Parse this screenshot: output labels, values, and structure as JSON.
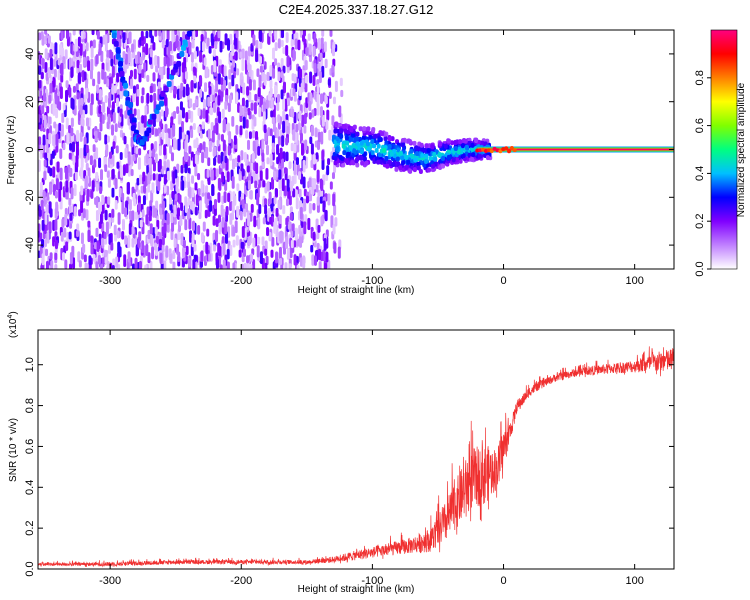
{
  "title": "C2E4.2025.337.18.27.G12",
  "chart_data": [
    {
      "type": "heatmap",
      "xlabel": "Height of straight line (km)",
      "ylabel": "Frequency (Hz)",
      "xlim": [
        -355,
        130
      ],
      "ylim": [
        -50,
        50
      ],
      "xticks": [
        -300,
        -200,
        -100,
        0,
        100
      ],
      "yticks": [
        -40,
        -20,
        0,
        20,
        40
      ],
      "xtick_labels": [
        "-300",
        "-200",
        "-100",
        "0",
        "100"
      ],
      "ytick_labels": [
        "-40",
        "-20",
        "0",
        "20",
        "40"
      ],
      "colorbar": {
        "label": "Normalized spectral amplitude",
        "range": [
          0,
          1
        ],
        "ticks": [
          0.0,
          0.2,
          0.4,
          0.6,
          0.8
        ],
        "tick_labels": [
          "0.0",
          "0.2",
          "0.4",
          "0.6",
          "0.8"
        ],
        "colors": [
          "#ffffff",
          "#c080ff",
          "#8000ff",
          "#0000ff",
          "#00c0ff",
          "#00ff80",
          "#80ff00",
          "#ffff00",
          "#ff8000",
          "#ff0000",
          "#ff0080"
        ]
      },
      "features": [
        {
          "name": "V-shaped trace",
          "points": [
            [
              -298,
              50
            ],
            [
              -280,
              5
            ],
            [
              -275,
              3
            ],
            [
              -238,
              50
            ]
          ]
        },
        {
          "name": "diffuse noise",
          "x_range": [
            -355,
            -120
          ],
          "y_range": [
            -50,
            50
          ]
        },
        {
          "name": "transition band",
          "x_range": [
            -130,
            -10
          ],
          "center": [
            [
              -130,
              2
            ],
            [
              -100,
              1
            ],
            [
              -80,
              -2
            ],
            [
              -60,
              -4
            ],
            [
              -40,
              -1
            ],
            [
              -20,
              0
            ]
          ]
        },
        {
          "name": "carrier line",
          "x_range": [
            -20,
            130
          ],
          "frequency": 0
        }
      ]
    },
    {
      "type": "line",
      "xlabel": "Height of straight line (km)",
      "ylabel": "SNR (10 * v/v)",
      "y_scale_label": "(x10",
      "y_scale_exp": "4",
      "y_scale_close": ")",
      "xlim": [
        -355,
        130
      ],
      "ylim": [
        0,
        1.17
      ],
      "xticks": [
        -300,
        -200,
        -100,
        0,
        100
      ],
      "yticks": [
        0.0,
        0.2,
        0.4,
        0.6,
        0.8,
        1.0
      ],
      "xtick_labels": [
        "-300",
        "-200",
        "-100",
        "0",
        "100"
      ],
      "ytick_labels": [
        "0.0",
        "0.2",
        "0.4",
        "0.6",
        "0.8",
        "1.0"
      ],
      "color": "#f03030",
      "envelope": {
        "x": [
          -355,
          -300,
          -250,
          -200,
          -150,
          -130,
          -110,
          -90,
          -70,
          -55,
          -45,
          -35,
          -25,
          -15,
          -5,
          0,
          5,
          10,
          20,
          30,
          40,
          60,
          80,
          100,
          115,
          130
        ],
        "base": [
          0.02,
          0.02,
          0.03,
          0.03,
          0.03,
          0.04,
          0.06,
          0.08,
          0.1,
          0.12,
          0.18,
          0.28,
          0.38,
          0.4,
          0.45,
          0.55,
          0.65,
          0.78,
          0.86,
          0.9,
          0.93,
          0.96,
          0.97,
          0.98,
          0.99,
          1.0
        ],
        "amp": [
          0.015,
          0.02,
          0.02,
          0.02,
          0.02,
          0.03,
          0.05,
          0.06,
          0.08,
          0.12,
          0.2,
          0.25,
          0.3,
          0.3,
          0.2,
          0.2,
          0.1,
          0.06,
          0.05,
          0.04,
          0.04,
          0.04,
          0.05,
          0.06,
          0.1,
          0.12
        ]
      }
    }
  ]
}
